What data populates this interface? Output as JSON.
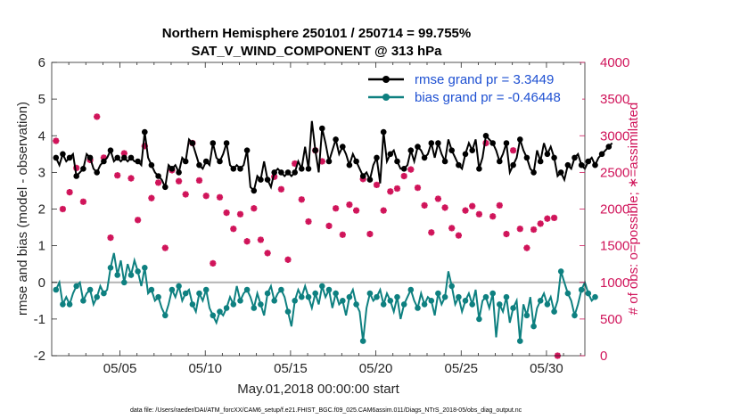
{
  "chart_data": {
    "type": "line",
    "title_line1": "Northern Hemisphere 250101 / 250714 = 99.755%",
    "title_line2": "SAT_V_WIND_COMPONENT @ 313 hPa",
    "xlabel": "May.01,2018 00:00:00 start",
    "ylabel_left": "rmse and bias (model - observation)",
    "ylabel_right": "# of obs: o=possible; ∗=assimilated",
    "footnote": "data file: /Users/raeder/DAI/ATM_forcXX/CAM6_setup/f.e21.FHIST_BGC.f09_025.CAM6assim.011/Diags_NTrS_2018-05/obs_diag_output.nc",
    "xlim": [
      1.0,
      32.25
    ],
    "ylim_left": [
      -2,
      6
    ],
    "ylim_right": [
      0,
      4000
    ],
    "x_tick_labels": [
      "05/05",
      "05/10",
      "05/15",
      "05/20",
      "05/25",
      "05/30"
    ],
    "x_tick_days": [
      5,
      10,
      15,
      20,
      25,
      30
    ],
    "y_left_ticks": [
      "-2",
      "-1",
      "0",
      "1",
      "2",
      "3",
      "4",
      "5",
      "6"
    ],
    "y_right_ticks": [
      "0",
      "500",
      "1000",
      "1500",
      "2000",
      "2500",
      "3000",
      "3500",
      "4000"
    ],
    "zero_line": 0,
    "colors": {
      "rmse": "#000000",
      "bias": "#0e8080",
      "obs": "#d0145a",
      "legend_text": "#1e50d2",
      "zero_line": "#b4b4b4"
    },
    "series": [
      {
        "name": "rmse grand pr = 3.3449",
        "axis": "left",
        "values": [
          3.4,
          3.2,
          3.5,
          3.3,
          3.4,
          3.5,
          2.9,
          3.0,
          3.1,
          3.5,
          3.4,
          3.1,
          3.0,
          3.2,
          3.3,
          3.4,
          3.6,
          3.3,
          3.4,
          3.3,
          3.4,
          3.3,
          3.4,
          3.3,
          3.3,
          3.2,
          4.1,
          3.4,
          3.2,
          3.0,
          2.9,
          2.8,
          2.6,
          3.2,
          3.1,
          3.2,
          3.0,
          3.4,
          3.3,
          3.9,
          3.8,
          3.5,
          3.2,
          3.1,
          3.3,
          3.2,
          3.8,
          3.4,
          3.3,
          3.5,
          3.8,
          3.2,
          3.1,
          3.2,
          3.1,
          3.2,
          3.6,
          2.6,
          2.5,
          2.9,
          2.8,
          3.3,
          2.8,
          2.6,
          3.0,
          3.1,
          3.0,
          2.9,
          3.0,
          2.9,
          3.0,
          3.3,
          3.1,
          3.7,
          3.1,
          4.4,
          3.6,
          3.0,
          4.2,
          3.8,
          3.3,
          3.6,
          3.9,
          3.5,
          3.7,
          3.5,
          3.2,
          3.5,
          3.3,
          3.1,
          2.9,
          3.0,
          2.8,
          3.2,
          3.4,
          2.7,
          4.1,
          3.3,
          3.5,
          3.6,
          3.3,
          3.1,
          3.1,
          3.2,
          3.6,
          3.3,
          3.7,
          3.6,
          3.4,
          3.5,
          3.8,
          3.4,
          3.8,
          3.5,
          3.3,
          3.9,
          3.6,
          3.4,
          3.2,
          3.1,
          3.5,
          3.8,
          3.6,
          3.9,
          3.1,
          3.4,
          4.0,
          3.9,
          3.8,
          3.6,
          3.3,
          3.5,
          3.8,
          3.0,
          3.2,
          3.4,
          3.9,
          3.6,
          3.4,
          3.1,
          3.0,
          3.6,
          3.3,
          3.8,
          3.5,
          3.7,
          3.4,
          2.9,
          3.0,
          2.8,
          3.2,
          3.1,
          3.4,
          3.5,
          3.2,
          3.1,
          3.3,
          3.4,
          3.2,
          3.4,
          3.5,
          3.6,
          3.7,
          3.8
        ]
      },
      {
        "name": "bias grand pr = -0.46448",
        "axis": "left",
        "values": [
          -0.2,
          0.0,
          -0.6,
          -0.4,
          -0.6,
          -0.3,
          -0.1,
          0.0,
          -0.5,
          -0.3,
          -0.2,
          -0.6,
          -0.4,
          -0.1,
          -0.3,
          -0.2,
          0.4,
          0.8,
          0.2,
          0.6,
          0.0,
          0.5,
          0.2,
          0.6,
          0.3,
          -0.1,
          0.4,
          -0.3,
          -0.2,
          -0.5,
          -0.4,
          -0.7,
          -0.9,
          -0.6,
          -0.2,
          -0.4,
          -0.1,
          -0.5,
          -0.3,
          -0.2,
          -0.6,
          -0.8,
          -0.3,
          -0.5,
          -0.2,
          -0.7,
          -0.9,
          -1.1,
          -0.8,
          -0.9,
          -0.7,
          -0.4,
          -0.6,
          -0.1,
          -0.5,
          -0.3,
          -0.2,
          -0.4,
          -0.7,
          -0.3,
          -0.6,
          -0.9,
          -0.3,
          -0.1,
          -0.5,
          -0.3,
          -0.2,
          -0.4,
          -0.8,
          -1.2,
          -0.5,
          -0.2,
          -0.4,
          -0.1,
          -0.4,
          -0.7,
          -0.3,
          -0.6,
          -0.1,
          -0.4,
          -0.2,
          -0.7,
          -0.3,
          -0.6,
          -0.5,
          -0.9,
          -0.4,
          -0.2,
          -0.6,
          -0.8,
          -1.6,
          -0.7,
          -0.3,
          -0.5,
          -0.4,
          -0.2,
          -0.6,
          -0.3,
          -0.5,
          -0.8,
          -0.4,
          -1.0,
          -0.6,
          -0.4,
          -0.2,
          -0.5,
          -0.7,
          -0.3,
          -0.6,
          -0.4,
          -0.5,
          -0.9,
          -0.3,
          -0.6,
          -0.4,
          0.3,
          -0.1,
          -0.6,
          -0.4,
          -0.8,
          -0.5,
          -0.3,
          -0.6,
          -0.2,
          -1.0,
          -0.5,
          -0.4,
          -0.7,
          -0.3,
          -1.5,
          -0.6,
          -0.8,
          -0.4,
          -1.1,
          -0.7,
          -0.5,
          -1.6,
          -0.6,
          -0.9,
          -0.4,
          -1.2,
          -0.7,
          -0.5,
          -0.3,
          -0.6,
          -0.4,
          -0.8,
          -0.5,
          0.3,
          0.0,
          -0.3,
          -0.5,
          -0.9,
          -0.6,
          -0.2,
          0.0,
          -0.3,
          -0.5,
          -0.4
        ]
      },
      {
        "name": "assimilated obs count",
        "axis": "right",
        "values": [
          2930,
          3340,
          2000,
          1890,
          2230,
          2750,
          2560,
          1800,
          2100,
          2410,
          2670,
          2220,
          3260,
          2570,
          2700,
          2920,
          1610,
          1590,
          2460,
          2220,
          2760,
          2080,
          2420,
          2600,
          1850,
          2050,
          2860,
          2190,
          2150,
          1940,
          2360,
          2130,
          1470,
          1920,
          2530,
          1270,
          2380,
          2480,
          2200,
          1620,
          2900,
          1780,
          2390,
          1660,
          2180,
          1940,
          1260,
          2900,
          2160,
          1960,
          1950,
          1600,
          1730,
          2140,
          1930,
          1880,
          1560,
          1970,
          2010,
          2280,
          1580,
          1990,
          1400,
          1350,
          2440,
          1530,
          2270,
          2000,
          1310,
          1840,
          2620,
          1610,
          2130,
          1730,
          1830,
          1190,
          2800,
          1900,
          2650,
          2420,
          1770,
          2560,
          2010,
          2700,
          1650,
          2350,
          2060,
          1770,
          1980,
          1320,
          2410,
          1240,
          1660,
          2420,
          2330,
          2560,
          1980,
          2470,
          2240,
          1770,
          2280,
          1670,
          2450,
          1800,
          2540,
          2040,
          2290,
          1860,
          2050,
          2830,
          1680,
          2690,
          2140,
          2580,
          2020,
          1830,
          1740,
          2470,
          1640,
          2790,
          1980,
          2370,
          2040,
          2550,
          1930,
          1880,
          2900,
          2660,
          1900,
          2780,
          2050,
          2370,
          1660,
          2010,
          2800,
          2310,
          1730,
          2100,
          1470,
          1540,
          1720,
          1800,
          1800,
          2510,
          1870,
          1870,
          1880,
          0
        ]
      }
    ]
  }
}
